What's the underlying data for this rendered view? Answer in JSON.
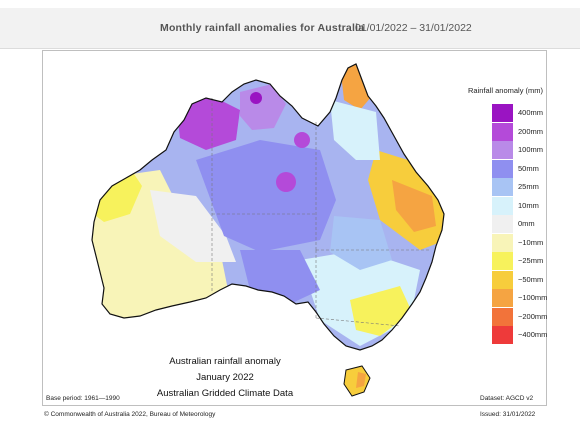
{
  "header": {
    "title": "Monthly rainfall anomalies for Australia",
    "date_range": "01/01/2022 – 31/01/2022"
  },
  "legend": {
    "title": "Rainfall anomaly (mm)",
    "items": [
      {
        "label": "400mm",
        "color": "#9a14c2"
      },
      {
        "label": "200mm",
        "color": "#b44ad9"
      },
      {
        "label": "100mm",
        "color": "#b98ae8"
      },
      {
        "label": "50mm",
        "color": "#8f8ff0"
      },
      {
        "label": "25mm",
        "color": "#a8c4f4"
      },
      {
        "label": "10mm",
        "color": "#d7f2fb"
      },
      {
        "label": "0mm",
        "color": "#f0f0f0"
      },
      {
        "label": "−10mm",
        "color": "#f8f4b8"
      },
      {
        "label": "−25mm",
        "color": "#f7f25c"
      },
      {
        "label": "−50mm",
        "color": "#f7cd3c"
      },
      {
        "label": "−100mm",
        "color": "#f5a442"
      },
      {
        "label": "−200mm",
        "color": "#f2733a"
      },
      {
        "label": "−400mm",
        "color": "#ee3a3a"
      }
    ]
  },
  "caption": {
    "line1": "Australian rainfall anomaly",
    "line2": "January 2022",
    "line3": "Australian Gridded Climate Data"
  },
  "footer": {
    "base_period": "Base period: 1961—1990",
    "dataset": "Dataset: AGCD v2",
    "copyright": "© Commonwealth of Australia 2022, Bureau of Meteorology",
    "issued": "Issued: 31/01/2022"
  },
  "colors": {
    "outline": "#111111",
    "state_border": "#777777"
  }
}
